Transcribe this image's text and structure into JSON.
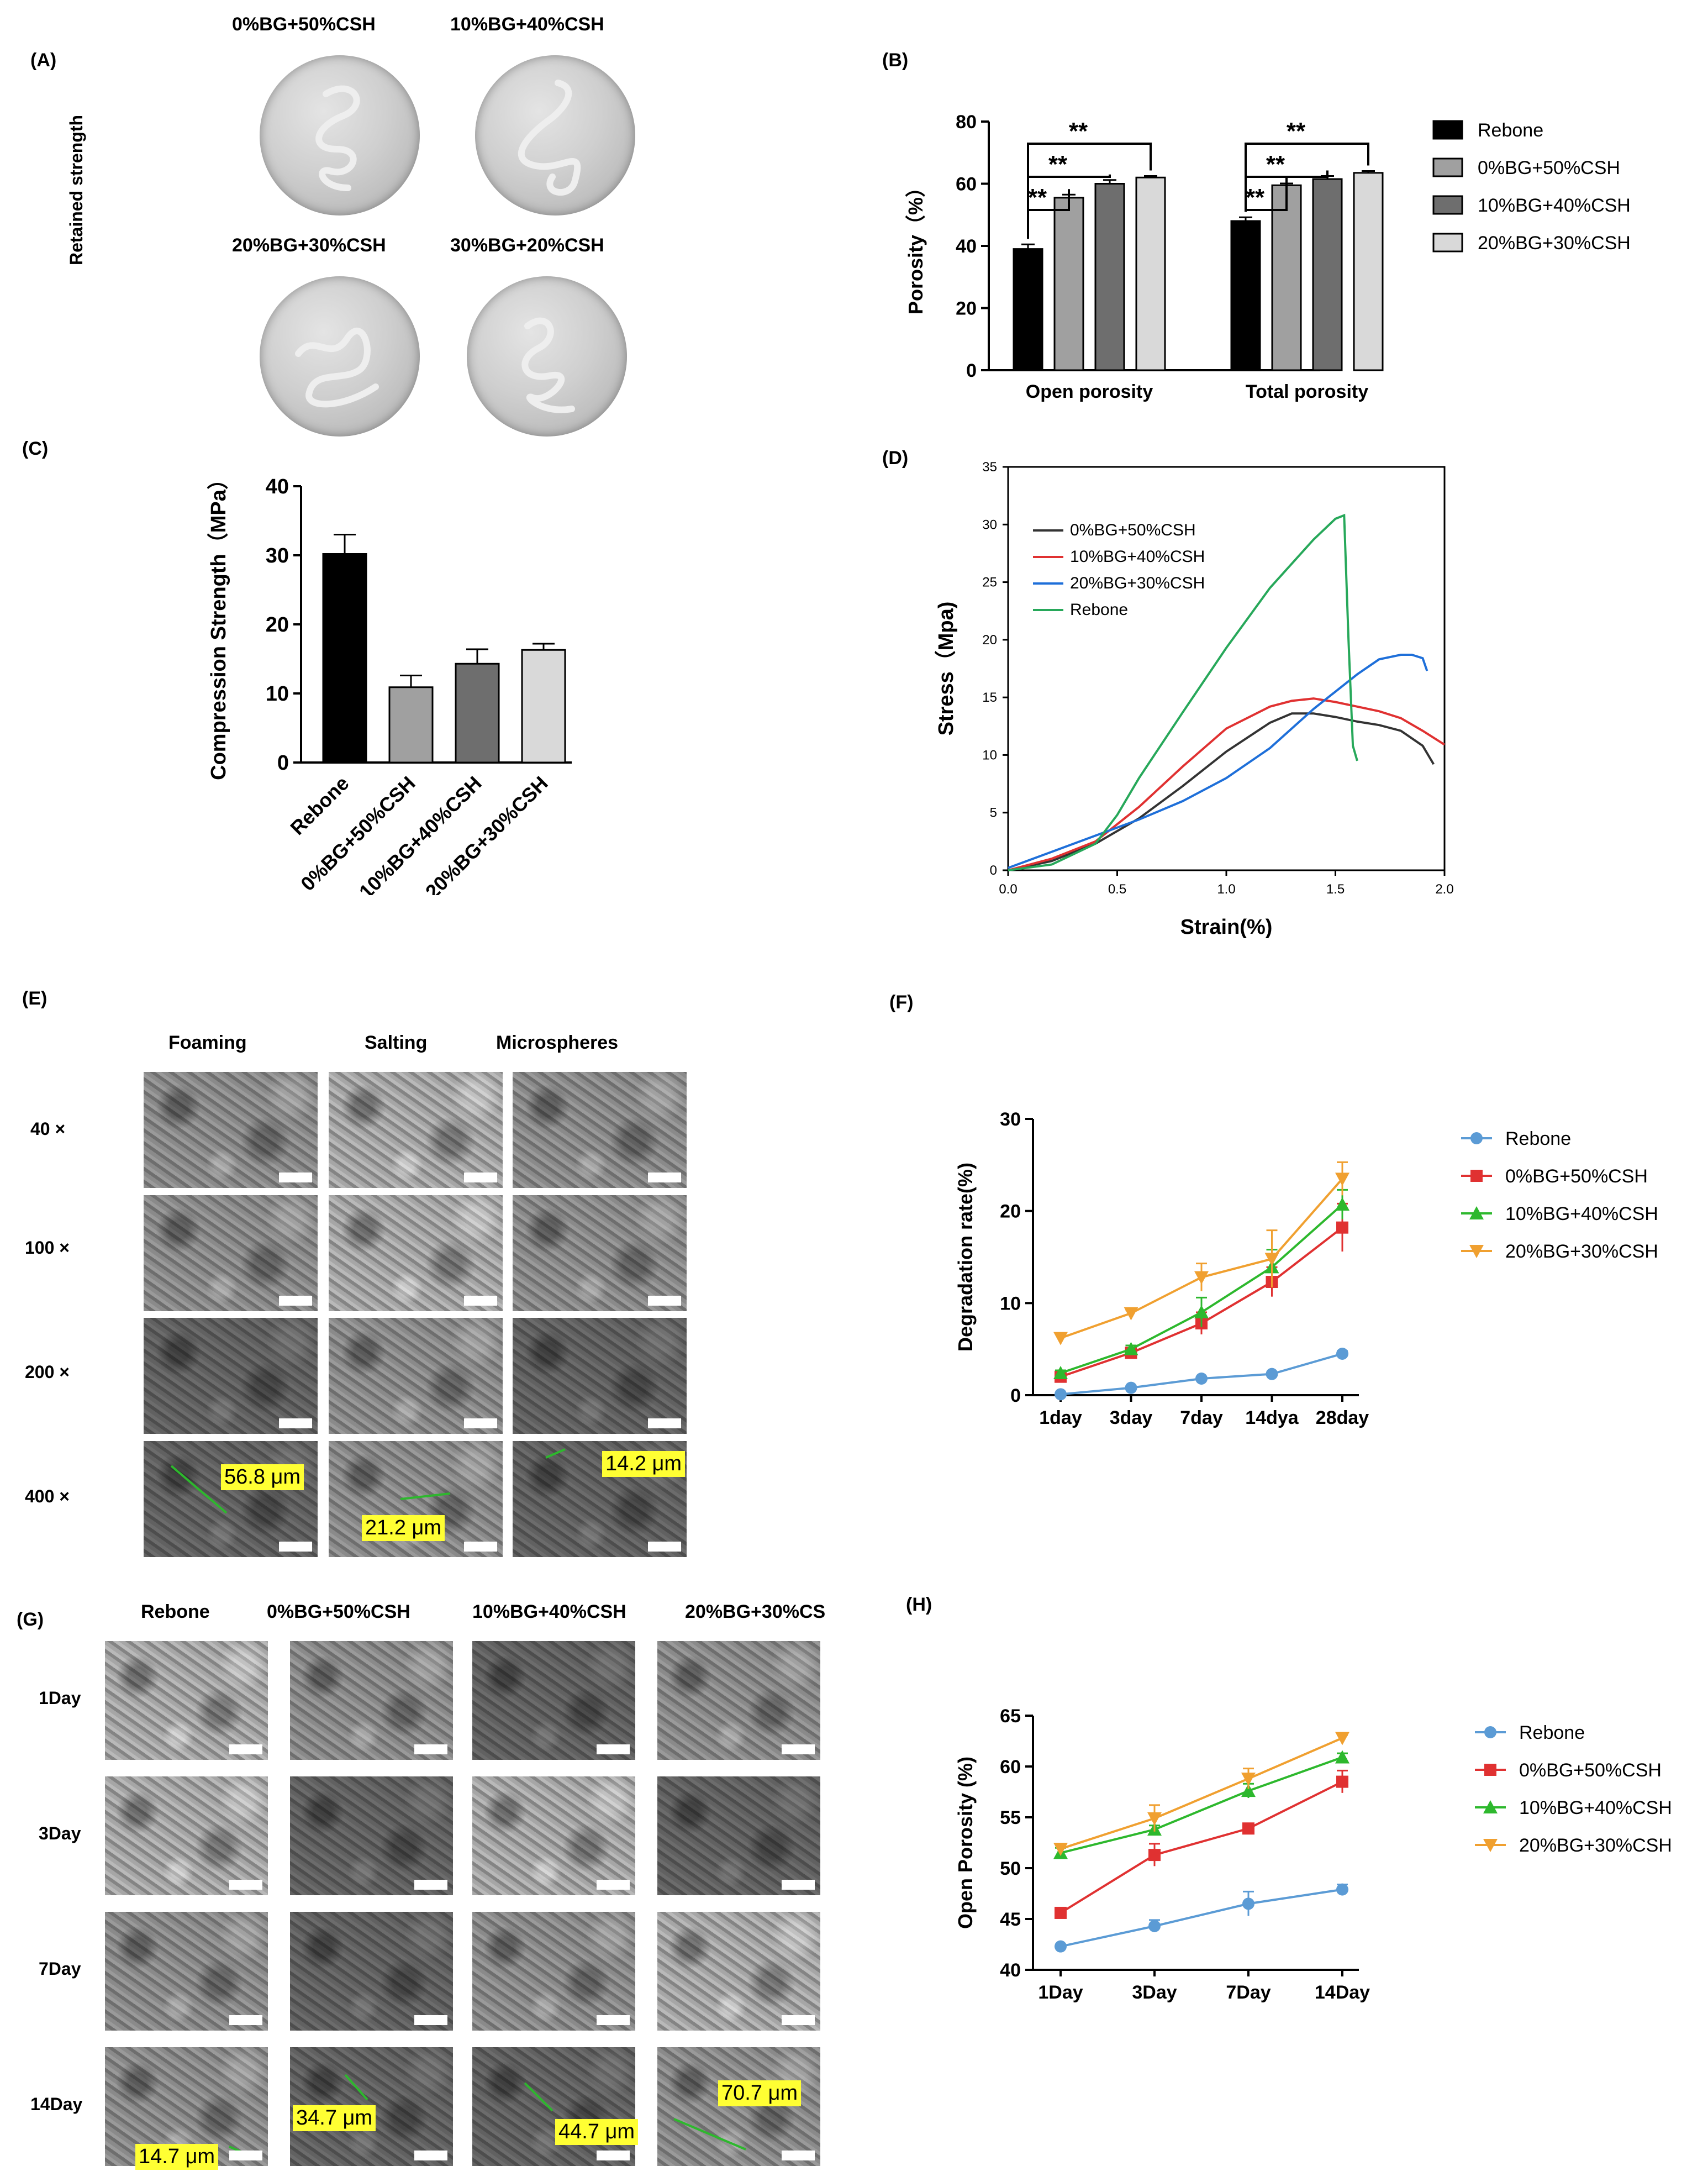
{
  "panel_labels": {
    "A": "(A)",
    "B": "(B)",
    "C": "(C)",
    "D": "(D)",
    "E": "(E)",
    "F": "(F)",
    "G": "(G)",
    "H": "(H)"
  },
  "panel_a": {
    "side_label": "Retained strength",
    "dishes": [
      "0%BG+50%CSH",
      "10%BG+40%CSH",
      "20%BG+30%CSH",
      "30%BG+20%CSH"
    ]
  },
  "panel_e": {
    "columns": [
      "Foaming",
      "Salting",
      "Microspheres"
    ],
    "rows": [
      "40 ×",
      "100 ×",
      "200 ×",
      "400 ×"
    ],
    "annotations": [
      "56.8 μm",
      "21.2 μm",
      "14.2 μm"
    ]
  },
  "panel_g": {
    "columns": [
      "Rebone",
      "0%BG+50%CSH",
      "10%BG+40%CSH",
      "20%BG+30%CS"
    ],
    "rows": [
      "1Day",
      "3Day",
      "7Day",
      "14Day"
    ],
    "annotations": [
      "14.7 μm",
      "34.7 μm",
      "44.7 μm",
      "70.7 μm"
    ]
  },
  "colors": {
    "black": "#000000",
    "gray1": "#a0a0a0",
    "gray2": "#6e6e6e",
    "gray3": "#d9d9d9",
    "blue": "#5b9bd5",
    "red": "#e03131",
    "green": "#2db82d",
    "orange": "#f0a030"
  },
  "chart_data": [
    {
      "id": "B",
      "type": "bar",
      "ylabel": "Porosity（%）",
      "ylim": [
        0,
        80
      ],
      "yticks": [
        "0",
        "20",
        "40",
        "60",
        "80"
      ],
      "categories": [
        "Open porosity",
        "Total porosity"
      ],
      "series": [
        {
          "name": "Rebone",
          "values": [
            39,
            48
          ],
          "errors": [
            1.5,
            1.2
          ]
        },
        {
          "name": "0%BG+50%CSH",
          "values": [
            55.5,
            59.5
          ],
          "errors": [
            1.0,
            0.6
          ]
        },
        {
          "name": "10%BG+40%CSH",
          "values": [
            60,
            61.5
          ],
          "errors": [
            1.2,
            1.0
          ]
        },
        {
          "name": "20%BG+30%CSH",
          "values": [
            62,
            63.5
          ],
          "errors": [
            0.5,
            0.6
          ]
        }
      ],
      "significance": "**"
    },
    {
      "id": "C",
      "type": "bar",
      "ylabel": "Compression Strength（MPa）",
      "ylim": [
        0,
        40
      ],
      "yticks": [
        "0",
        "10",
        "20",
        "30",
        "40"
      ],
      "categories": [
        "Rebone",
        "0%BG+50%CSH",
        "10%BG+40%CSH",
        "20%BG+30%CSH"
      ],
      "values": [
        30.2,
        10.9,
        14.3,
        16.3
      ],
      "errors": [
        2.8,
        1.7,
        2.1,
        0.9
      ]
    },
    {
      "id": "D",
      "type": "line",
      "xlabel": "Strain(%)",
      "ylabel": "Stress（Mpa)",
      "xlim": [
        0,
        2.0
      ],
      "ylim": [
        0,
        35
      ],
      "xticks": [
        "0.0",
        "0.5",
        "1.0",
        "1.5",
        "2.0"
      ],
      "yticks": [
        "0",
        "5",
        "10",
        "15",
        "20",
        "25",
        "30",
        "35"
      ],
      "series": [
        {
          "name": "0%BG+50%CSH",
          "x": [
            0,
            0.2,
            0.4,
            0.6,
            0.8,
            1.0,
            1.2,
            1.3,
            1.4,
            1.5,
            1.6,
            1.7,
            1.8,
            1.9,
            1.95
          ],
          "y": [
            0,
            0.8,
            2.3,
            4.5,
            7.3,
            10.3,
            12.8,
            13.6,
            13.6,
            13.3,
            12.9,
            12.6,
            12.1,
            10.8,
            9.2
          ]
        },
        {
          "name": "10%BG+40%CSH",
          "x": [
            0,
            0.2,
            0.4,
            0.6,
            0.8,
            1.0,
            1.2,
            1.3,
            1.4,
            1.5,
            1.6,
            1.7,
            1.8,
            1.9,
            2.0
          ],
          "y": [
            0,
            1.0,
            2.5,
            5.5,
            9.0,
            12.3,
            14.2,
            14.7,
            14.9,
            14.6,
            14.2,
            13.8,
            13.2,
            12.1,
            10.9
          ]
        },
        {
          "name": "20%BG+30%CSH",
          "x": [
            0,
            0.2,
            0.4,
            0.6,
            0.8,
            1.0,
            1.2,
            1.4,
            1.6,
            1.7,
            1.8,
            1.85,
            1.9,
            1.92
          ],
          "y": [
            0.2,
            1.6,
            3.0,
            4.4,
            6.0,
            8.0,
            10.6,
            14.0,
            17.0,
            18.3,
            18.7,
            18.7,
            18.4,
            17.3
          ]
        },
        {
          "name": "Rebone",
          "x": [
            0,
            0.2,
            0.4,
            0.5,
            0.6,
            0.8,
            1.0,
            1.2,
            1.4,
            1.5,
            1.54,
            1.56,
            1.58,
            1.6
          ],
          "y": [
            0,
            0.5,
            2.3,
            4.8,
            8.0,
            13.7,
            19.3,
            24.5,
            28.7,
            30.5,
            30.8,
            20.0,
            10.8,
            9.5
          ]
        }
      ]
    },
    {
      "id": "F",
      "type": "line",
      "ylabel": "Degradation rate(%)",
      "ylim": [
        0,
        30
      ],
      "yticks": [
        "0",
        "10",
        "20",
        "30"
      ],
      "categories": [
        "1day",
        "3day",
        "7day",
        "14dya",
        "28day"
      ],
      "series": [
        {
          "name": "Rebone",
          "values": [
            0.1,
            0.8,
            1.8,
            2.3,
            4.5
          ],
          "errors": [
            0.1,
            0.2,
            0.2,
            0.2,
            0.3
          ]
        },
        {
          "name": "0%BG+50%CSH",
          "values": [
            2.0,
            4.6,
            7.8,
            12.3,
            18.2
          ],
          "errors": [
            0.4,
            0.4,
            1.2,
            1.6,
            2.6
          ]
        },
        {
          "name": "10%BG+40%CSH",
          "values": [
            2.4,
            5.0,
            9.0,
            13.9,
            20.7
          ],
          "errors": [
            0.3,
            0.4,
            1.6,
            1.9,
            1.6
          ]
        },
        {
          "name": "20%BG+30%CSH",
          "values": [
            6.2,
            8.9,
            12.8,
            14.8,
            23.5
          ],
          "errors": [
            0.4,
            0.3,
            1.5,
            3.1,
            1.8
          ]
        }
      ]
    },
    {
      "id": "H",
      "type": "line",
      "ylabel": "Open  Porosity (%)",
      "ylim": [
        40,
        65
      ],
      "yticks": [
        "40",
        "45",
        "50",
        "55",
        "60",
        "65"
      ],
      "categories": [
        "1Day",
        "3Day",
        "7Day",
        "14Day"
      ],
      "series": [
        {
          "name": "Rebone",
          "values": [
            42.3,
            44.3,
            46.5,
            47.9
          ],
          "errors": [
            0.2,
            0.6,
            1.2,
            0.5
          ]
        },
        {
          "name": "0%BG+50%CSH",
          "values": [
            45.6,
            51.3,
            53.9,
            58.5
          ],
          "errors": [
            0.3,
            1.1,
            0.5,
            1.1
          ]
        },
        {
          "name": "10%BG+40%CSH",
          "values": [
            51.5,
            53.8,
            57.6,
            60.9
          ],
          "errors": [
            0.5,
            0.4,
            0.7,
            0.4
          ]
        },
        {
          "name": "20%BG+30%CSH",
          "values": [
            51.9,
            54.9,
            58.8,
            62.8
          ],
          "errors": [
            0.5,
            1.3,
            1.0,
            0.3
          ]
        }
      ]
    }
  ]
}
